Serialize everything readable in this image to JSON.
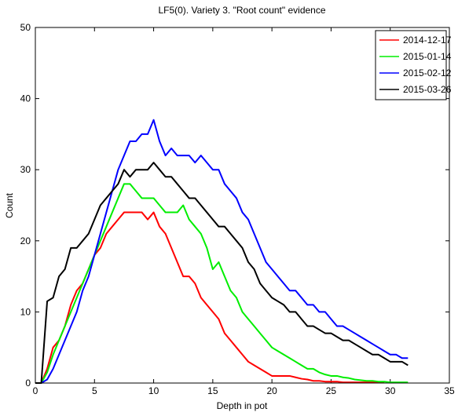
{
  "chart_data": {
    "type": "line",
    "title": "LF5(0).  Variety 3.  \"Root count\" evidence",
    "xlabel": "Depth in pot",
    "ylabel": "Count",
    "x": [
      0,
      0.5,
      1,
      1.5,
      2,
      2.5,
      3,
      3.5,
      4,
      4.5,
      5,
      5.5,
      6,
      6.5,
      7,
      7.5,
      8,
      8.5,
      9,
      9.5,
      10,
      10.5,
      11,
      11.5,
      12,
      12.5,
      13,
      13.5,
      14,
      14.5,
      15,
      15.5,
      16,
      16.5,
      17,
      17.5,
      18,
      18.5,
      19,
      19.5,
      20,
      20.5,
      21,
      21.5,
      22,
      22.5,
      23,
      23.5,
      24,
      24.5,
      25,
      25.5,
      26,
      26.5,
      27,
      27.5,
      28,
      28.5,
      29,
      29.5,
      30,
      30.5,
      31,
      31.5
    ],
    "series": [
      {
        "name": "2014-12-17",
        "color": "#ff0000",
        "values": [
          0,
          0,
          2,
          5,
          6,
          8,
          11,
          13,
          14,
          16,
          18,
          19,
          21,
          22,
          23,
          24,
          24,
          24,
          24,
          23,
          24,
          22,
          21,
          19,
          17,
          15,
          15,
          14,
          12,
          11,
          10,
          9,
          7,
          6,
          5,
          4,
          3,
          2.5,
          2,
          1.5,
          1,
          1,
          1,
          1,
          0.8,
          0.6,
          0.5,
          0.3,
          0.3,
          0.2,
          0.2,
          0.2,
          0.1,
          0.1,
          0.1,
          0.1,
          0.1,
          0.1,
          0.1,
          0.1,
          null,
          null,
          null,
          null
        ]
      },
      {
        "name": "2015-01-14",
        "color": "#00ee00",
        "values": [
          0,
          0,
          1.5,
          4,
          6,
          8,
          10,
          12,
          14,
          16,
          18,
          20,
          22,
          24,
          26,
          28,
          28,
          27,
          26,
          26,
          26,
          25,
          24,
          24,
          24,
          25,
          23,
          22,
          21,
          19,
          16,
          17,
          15,
          13,
          12,
          10,
          9,
          8,
          7,
          6,
          5,
          4.5,
          4,
          3.5,
          3,
          2.5,
          2,
          2,
          1.5,
          1.2,
          1,
          1,
          0.8,
          0.7,
          0.5,
          0.4,
          0.3,
          0.3,
          0.2,
          0.2,
          0.1,
          0.1,
          0.1,
          0.1
        ]
      },
      {
        "name": "2015-02-12",
        "color": "#0000ff",
        "values": [
          0,
          0,
          0.5,
          2,
          4,
          6,
          8,
          10,
          13,
          15,
          18,
          21,
          24,
          27,
          30,
          32,
          34,
          34,
          35,
          35,
          37,
          34,
          32,
          33,
          32,
          32,
          32,
          31,
          32,
          31,
          30,
          30,
          28,
          27,
          26,
          24,
          23,
          21,
          19,
          17,
          16,
          15,
          14,
          13,
          13,
          12,
          11,
          11,
          10,
          10,
          9,
          8,
          8,
          7.5,
          7,
          6.5,
          6,
          5.5,
          5,
          4.5,
          4,
          4,
          3.5,
          3.5
        ]
      },
      {
        "name": "2015-03-26",
        "color": "#000000",
        "values": [
          0,
          0,
          11.5,
          12,
          15,
          16,
          19,
          19,
          20,
          21,
          23,
          25,
          26,
          27,
          28,
          30,
          29,
          30,
          30,
          30,
          31,
          30,
          29,
          29,
          28,
          27,
          26,
          26,
          25,
          24,
          23,
          22,
          22,
          21,
          20,
          19,
          17,
          16,
          14,
          13,
          12,
          11.5,
          11,
          10,
          10,
          9,
          8,
          8,
          7.5,
          7,
          7,
          6.5,
          6,
          6,
          5.5,
          5,
          4.5,
          4,
          4,
          3.5,
          3,
          3,
          3,
          2.5
        ]
      }
    ],
    "xlim": [
      0,
      35
    ],
    "ylim": [
      0,
      50
    ],
    "xticks": [
      0,
      5,
      10,
      15,
      20,
      25,
      30,
      35
    ],
    "yticks": [
      0,
      10,
      20,
      30,
      40,
      50
    ],
    "legend": "upper right"
  }
}
